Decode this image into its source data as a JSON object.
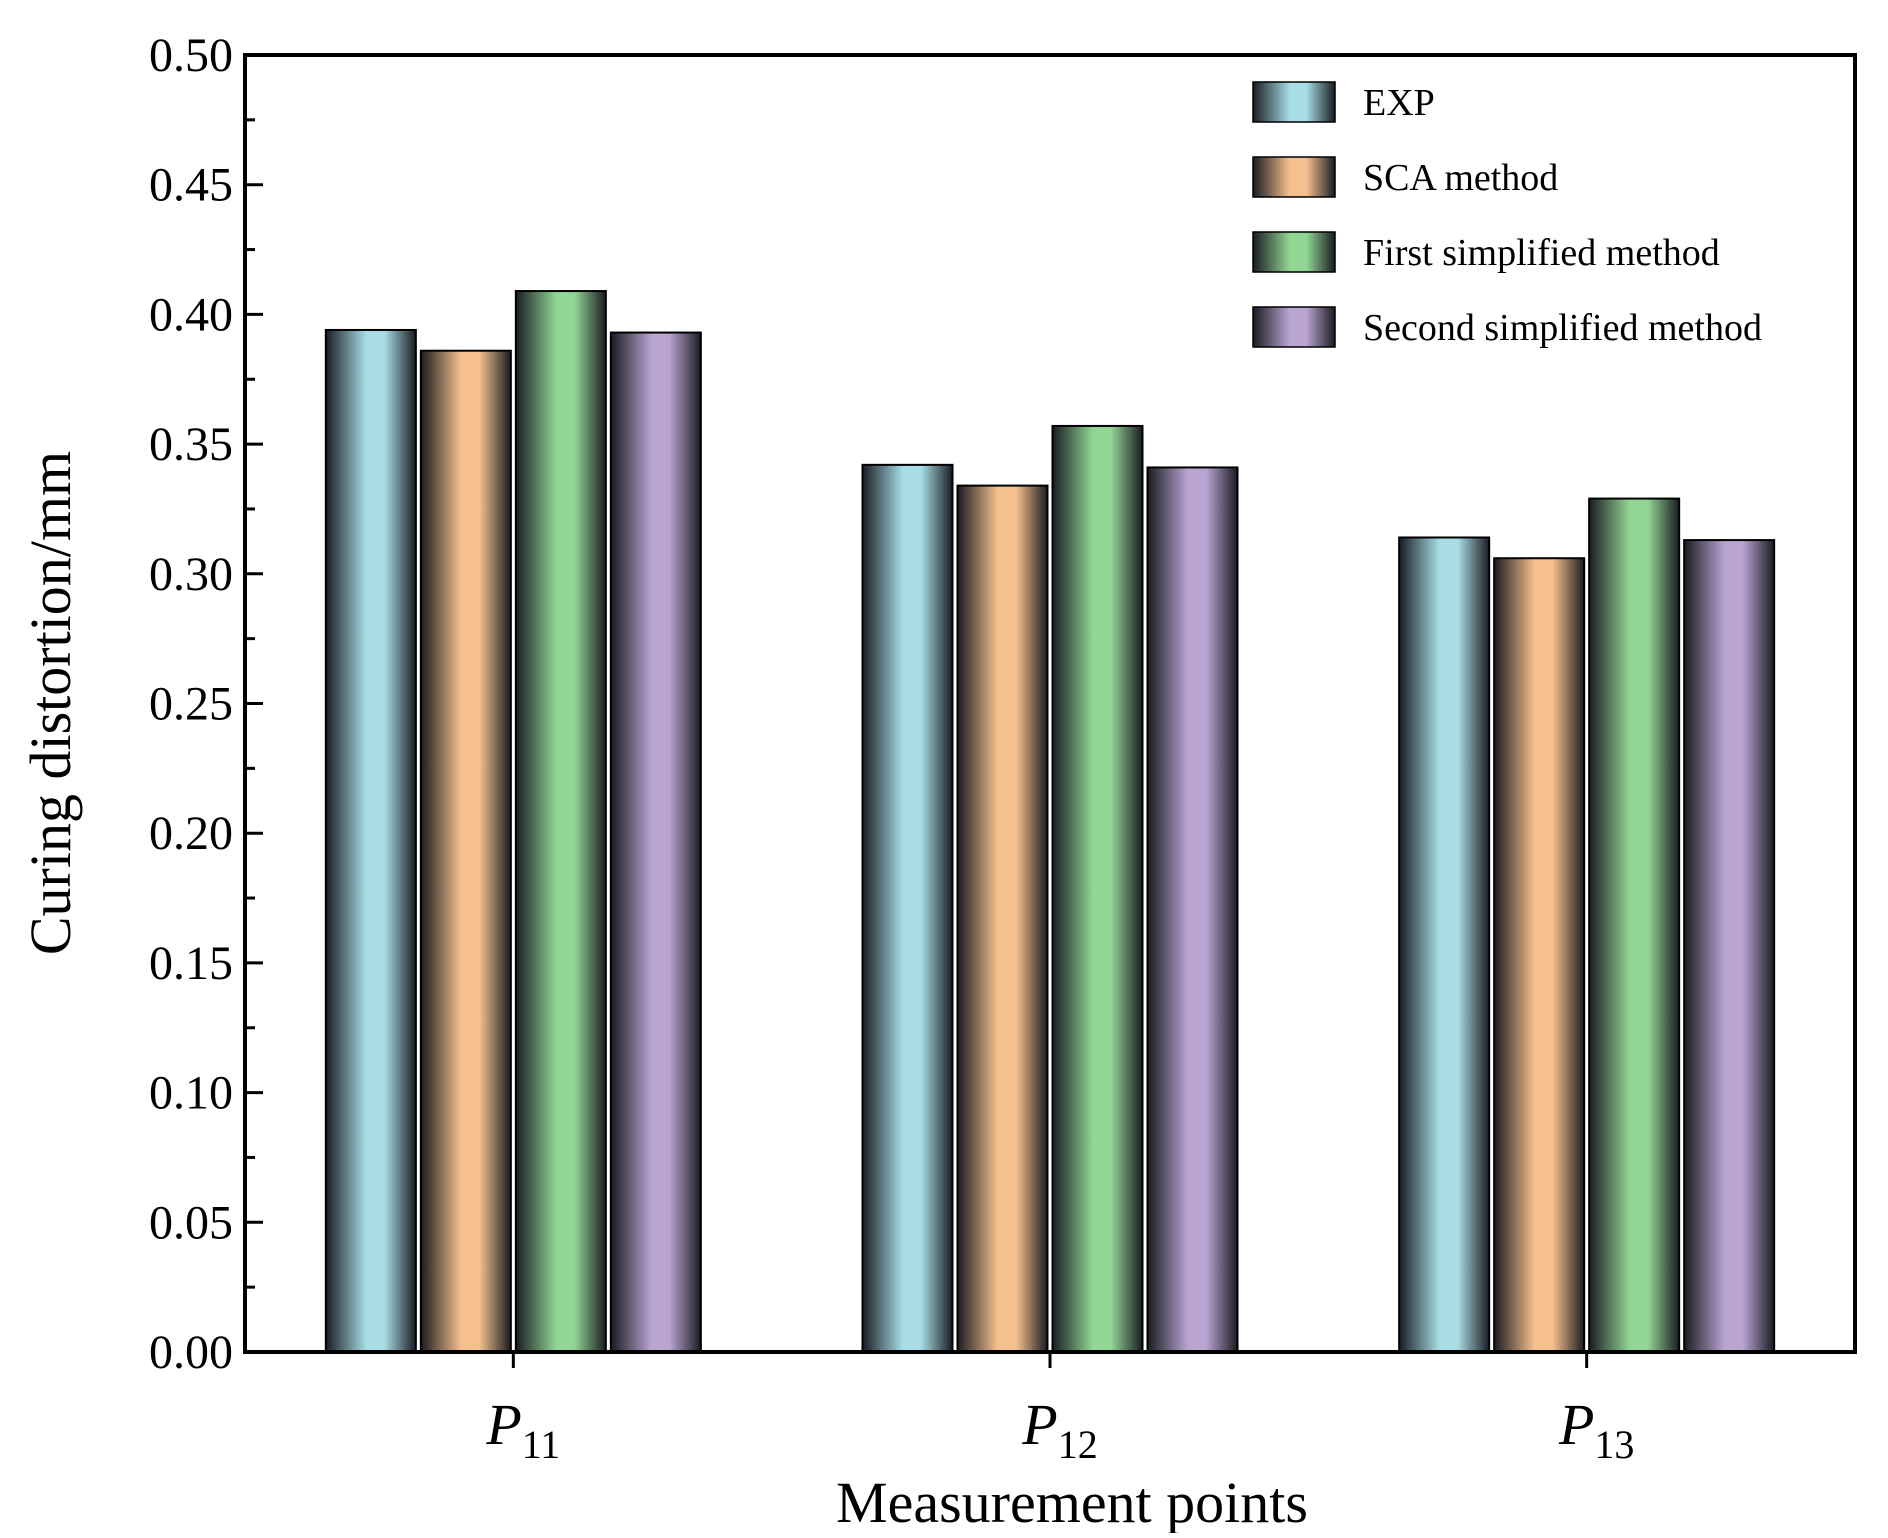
{
  "chart_data": {
    "type": "bar",
    "categories": [
      {
        "main": "P",
        "sub": "11"
      },
      {
        "main": "P",
        "sub": "12"
      },
      {
        "main": "P",
        "sub": "13"
      }
    ],
    "series": [
      {
        "name": "EXP",
        "values": [
          0.394,
          0.342,
          0.314
        ],
        "color": "#a8dde6"
      },
      {
        "name": "SCA method",
        "values": [
          0.386,
          0.334,
          0.306
        ],
        "color": "#f6c08e"
      },
      {
        "name": "First simplified method",
        "values": [
          0.409,
          0.357,
          0.329
        ],
        "color": "#92d694"
      },
      {
        "name": "Second simplified method",
        "values": [
          0.393,
          0.341,
          0.313
        ],
        "color": "#b9a4d2"
      }
    ],
    "title": "",
    "xlabel": "Measurement points",
    "ylabel": "Curing distortion/mm",
    "ylim": [
      0,
      0.5
    ],
    "yticks": [
      "0.00",
      "0.05",
      "0.10",
      "0.15",
      "0.20",
      "0.25",
      "0.30",
      "0.35",
      "0.40",
      "0.45",
      "0.50"
    ],
    "grid": false,
    "legend_position": "top-right"
  }
}
